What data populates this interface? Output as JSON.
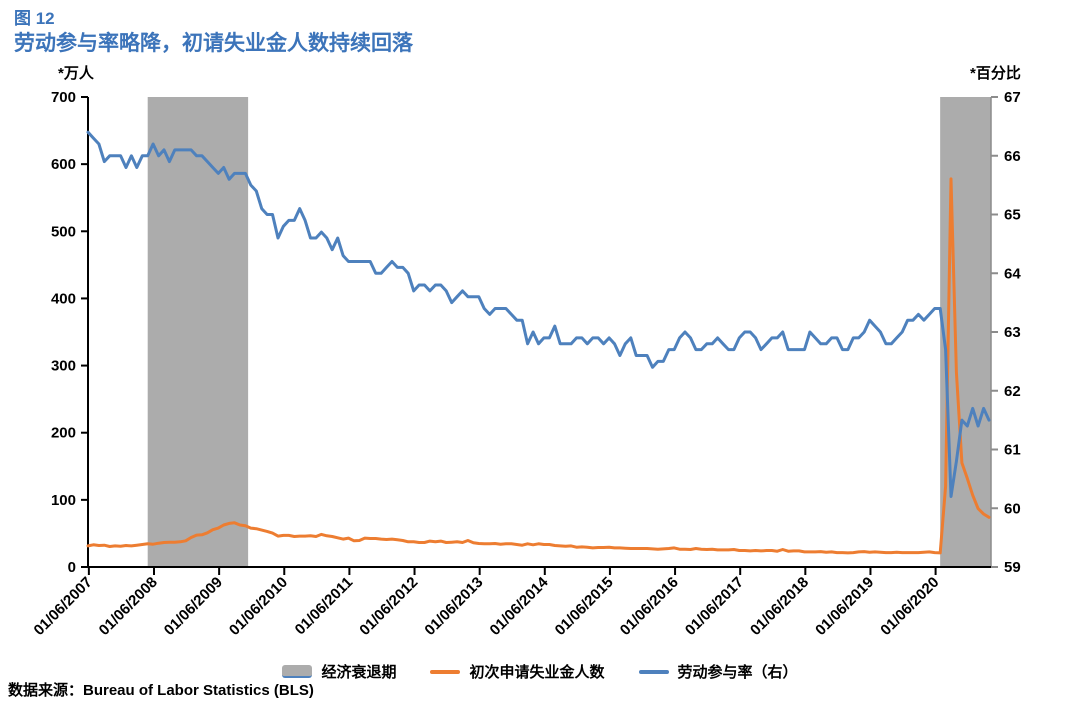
{
  "header": {
    "figure_label": "图 12",
    "title": "劳动参与率略降，初请失业金人数持续回落"
  },
  "axes": {
    "left_unit": "*万人",
    "right_unit": "*百分比"
  },
  "legend": {
    "band_label": "经济衰退期"
  },
  "source": {
    "text": "数据来源：Bureau of Labor Statistics (BLS)"
  },
  "colors": {
    "title_blue": "#3C74BA",
    "claims_orange": "#ED7D31",
    "lfpr_blue": "#4E81BD",
    "band_gray": "#ACACAC",
    "axis_black": "#000000",
    "right_axis_gray": "#8C8C8C"
  },
  "chart_data": {
    "type": "line",
    "title": "劳动参与率略降，初请失业金人数持续回落",
    "frequency": "monthly",
    "x_start": "2007-01",
    "x_end": "2020-11",
    "x_tick_labels": [
      "01/06/2007",
      "01/06/2008",
      "01/06/2009",
      "01/06/2010",
      "01/06/2011",
      "01/06/2012",
      "01/06/2013",
      "01/06/2014",
      "01/06/2015",
      "01/06/2016",
      "01/06/2017",
      "01/06/2018",
      "01/06/2019",
      "01/06/2020"
    ],
    "left_axis": {
      "label": "*万人",
      "min": 0,
      "max": 700,
      "step": 100
    },
    "right_axis": {
      "label": "*百分比",
      "min": 59,
      "max": 67,
      "step": 1
    },
    "band_label": "经济衰退期",
    "recession_bands": [
      {
        "from_month_index": 11,
        "to_month_index": 29.5
      },
      {
        "from_month_index": 157,
        "to_month_index": null
      }
    ],
    "series": [
      {
        "key": "claims",
        "name": "初次申请失业金人数",
        "axis": "left",
        "color": "#ED7D31",
        "values": [
          31.5,
          33,
          32,
          32.5,
          30.5,
          31.5,
          31,
          32,
          31.5,
          32.5,
          33.5,
          34.5,
          34,
          35.5,
          36.5,
          37,
          37,
          37.5,
          39,
          44,
          47.5,
          48,
          51,
          55.5,
          58,
          62.5,
          65,
          65.8,
          62.5,
          61.5,
          58,
          57,
          55,
          53,
          50.5,
          46,
          47,
          47,
          45.5,
          46,
          46,
          46.5,
          45.5,
          48.5,
          46.5,
          45.5,
          43.5,
          41.5,
          43,
          39,
          39.5,
          43,
          42.5,
          42.5,
          41.5,
          41,
          41.5,
          40.5,
          39.5,
          37.5,
          37.5,
          36.5,
          36.5,
          38.5,
          37.5,
          38.5,
          36.5,
          37,
          37.5,
          36.5,
          39.5,
          36,
          35,
          34.5,
          34.5,
          35,
          34,
          34.5,
          34.5,
          33.5,
          32.5,
          34.5,
          33,
          34.5,
          33.5,
          33.5,
          32,
          31.5,
          31,
          31.5,
          29.5,
          30,
          29.5,
          28.5,
          29,
          29,
          29.5,
          28.5,
          28.5,
          28,
          27.5,
          27.5,
          27.5,
          27.5,
          27,
          26.5,
          27,
          27.5,
          28.5,
          26.5,
          26.5,
          26,
          27.5,
          26.5,
          26,
          26.5,
          25.5,
          25.5,
          25.5,
          26,
          24.5,
          24.5,
          24,
          24.5,
          24,
          24.5,
          24.5,
          23.5,
          26,
          23.5,
          24,
          24,
          22.5,
          22.5,
          22.5,
          23,
          22,
          22.5,
          21.5,
          21.5,
          21,
          21.5,
          22.5,
          23,
          22,
          22.5,
          22,
          21.5,
          21.5,
          22,
          21.5,
          21.5,
          21.5,
          21.5,
          22,
          22.5,
          21.5,
          21,
          120,
          578,
          290,
          155,
          132,
          107,
          87,
          79,
          74
        ]
      },
      {
        "key": "lfpr",
        "name": "劳动参与率（右）",
        "axis": "right",
        "color": "#4E81BD",
        "values": [
          66.4,
          66.3,
          66.2,
          65.9,
          66.0,
          66.0,
          66.0,
          65.8,
          66.0,
          65.8,
          66.0,
          66.0,
          66.2,
          66.0,
          66.1,
          65.9,
          66.1,
          66.1,
          66.1,
          66.1,
          66.0,
          66.0,
          65.9,
          65.8,
          65.7,
          65.8,
          65.6,
          65.7,
          65.7,
          65.7,
          65.5,
          65.4,
          65.1,
          65.0,
          65.0,
          64.6,
          64.8,
          64.9,
          64.9,
          65.1,
          64.9,
          64.6,
          64.6,
          64.7,
          64.6,
          64.4,
          64.6,
          64.3,
          64.2,
          64.2,
          64.2,
          64.2,
          64.2,
          64.0,
          64.0,
          64.1,
          64.2,
          64.1,
          64.1,
          64.0,
          63.7,
          63.8,
          63.8,
          63.7,
          63.8,
          63.8,
          63.7,
          63.5,
          63.6,
          63.7,
          63.6,
          63.6,
          63.6,
          63.4,
          63.3,
          63.4,
          63.4,
          63.4,
          63.3,
          63.2,
          63.2,
          62.8,
          63.0,
          62.8,
          62.9,
          62.9,
          63.1,
          62.8,
          62.8,
          62.8,
          62.9,
          62.9,
          62.8,
          62.9,
          62.9,
          62.8,
          62.9,
          62.8,
          62.6,
          62.8,
          62.9,
          62.6,
          62.6,
          62.6,
          62.4,
          62.5,
          62.5,
          62.7,
          62.7,
          62.9,
          63.0,
          62.9,
          62.7,
          62.7,
          62.8,
          62.8,
          62.9,
          62.8,
          62.7,
          62.7,
          62.9,
          63.0,
          63.0,
          62.9,
          62.7,
          62.8,
          62.9,
          62.9,
          63.0,
          62.7,
          62.7,
          62.7,
          62.7,
          63.0,
          62.9,
          62.8,
          62.8,
          62.9,
          62.9,
          62.7,
          62.7,
          62.9,
          62.9,
          63.0,
          63.2,
          63.1,
          63.0,
          62.8,
          62.8,
          62.9,
          63.0,
          63.2,
          63.2,
          63.3,
          63.2,
          63.3,
          63.4,
          63.4,
          62.7,
          60.2,
          60.8,
          61.5,
          61.4,
          61.7,
          61.4,
          61.7,
          61.5
        ]
      }
    ]
  }
}
